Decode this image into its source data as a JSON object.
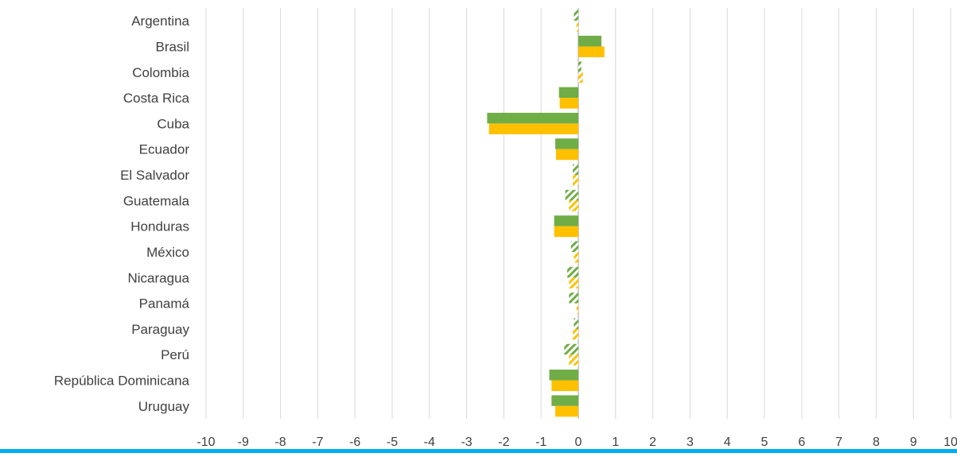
{
  "chart_data": {
    "type": "bar",
    "orientation": "horizontal",
    "title": "",
    "xlabel": "",
    "ylabel": "",
    "xlim": [
      -10,
      10
    ],
    "xticks": [
      -10,
      -9,
      -8,
      -7,
      -6,
      -5,
      -4,
      -3,
      -2,
      -1,
      0,
      1,
      2,
      3,
      4,
      5,
      6,
      7,
      8,
      9,
      10
    ],
    "grid": true,
    "legend": false,
    "categories": [
      "Argentina",
      "Brasil",
      "Colombia",
      "Costa Rica",
      "Cuba",
      "Ecuador",
      "El Salvador",
      "Guatemala",
      "Honduras",
      "México",
      "Nicaragua",
      "Panamá",
      "Paraguay",
      "Perú",
      "República Dominicana",
      "Uruguay"
    ],
    "series": [
      {
        "color": "#70AD47",
        "values": [
          -0.12,
          0.62,
          0.08,
          -0.52,
          -2.45,
          -0.62,
          -0.15,
          -0.35,
          -0.65,
          -0.2,
          -0.3,
          -0.25,
          -0.12,
          -0.38,
          -0.78,
          -0.72
        ],
        "hatched": [
          true,
          false,
          true,
          false,
          false,
          false,
          true,
          true,
          false,
          true,
          true,
          true,
          true,
          true,
          false,
          false
        ]
      },
      {
        "color": "#FFC000",
        "values": [
          -0.05,
          0.7,
          0.12,
          -0.5,
          -2.4,
          -0.6,
          -0.15,
          -0.25,
          -0.65,
          -0.12,
          -0.25,
          -0.05,
          -0.15,
          -0.25,
          -0.72,
          -0.62
        ],
        "hatched": [
          true,
          false,
          true,
          false,
          false,
          false,
          true,
          true,
          false,
          true,
          true,
          true,
          true,
          true,
          false,
          false
        ]
      }
    ]
  },
  "colors": {
    "gridline": "#D9D9D9",
    "text": "#404040",
    "bottom_bar": "#00B0F0"
  }
}
